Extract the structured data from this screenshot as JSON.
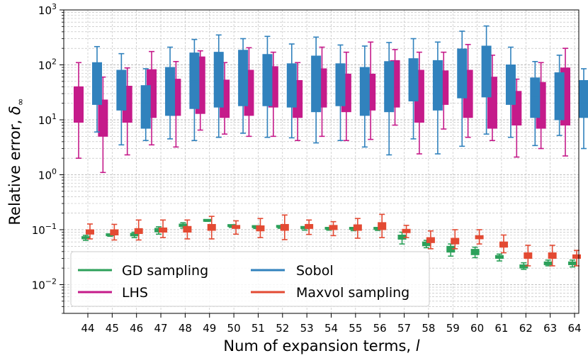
{
  "chart_data": {
    "type": "boxplot",
    "xlabel": "Num of expansion terms, ",
    "xlabel_var": "l",
    "ylabel": "Relative error, ",
    "ylabel_var": "δ",
    "ylabel_sub": "∞",
    "yscale": "log",
    "ylim": [
      0.003,
      1000
    ],
    "y_ticks": [
      {
        "value": 0.01,
        "base": "10",
        "exp": "−2"
      },
      {
        "value": 0.1,
        "base": "10",
        "exp": "−1"
      },
      {
        "value": 1,
        "base": "10",
        "exp": "0"
      },
      {
        "value": 10,
        "base": "10",
        "exp": "1"
      },
      {
        "value": 100,
        "base": "10",
        "exp": "2"
      },
      {
        "value": 1000,
        "base": "10",
        "exp": "3"
      }
    ],
    "grid": true,
    "legend_position": "lower-left",
    "categories": [
      "44",
      "45",
      "46",
      "47",
      "48",
      "49",
      "50",
      "51",
      "52",
      "53",
      "54",
      "55",
      "56",
      "57",
      "58",
      "59",
      "60",
      "61",
      "62",
      "63",
      "64"
    ],
    "series": [
      {
        "name": "GD sampling",
        "color": "#2ca05a",
        "offset": -3,
        "boxes": [
          [
            0.064,
            0.068,
            0.071,
            0.075,
            0.079
          ],
          [
            0.076,
            0.078,
            0.08,
            0.081,
            0.083
          ],
          [
            0.072,
            0.077,
            0.081,
            0.086,
            0.09
          ],
          [
            0.083,
            0.091,
            0.098,
            0.106,
            0.113
          ],
          [
            0.107,
            0.114,
            0.12,
            0.127,
            0.134
          ],
          [
            0.142,
            0.144,
            0.146,
            0.148,
            0.15
          ],
          [
            0.11,
            0.113,
            0.116,
            0.119,
            0.122
          ],
          [
            0.105,
            0.108,
            0.111,
            0.114,
            0.117
          ],
          [
            0.106,
            0.109,
            0.112,
            0.115,
            0.118
          ],
          [
            0.098,
            0.102,
            0.106,
            0.11,
            0.113
          ],
          [
            0.098,
            0.101,
            0.104,
            0.106,
            0.108
          ],
          [
            0.096,
            0.1,
            0.103,
            0.106,
            0.109
          ],
          [
            0.097,
            0.1,
            0.103,
            0.106,
            0.109
          ],
          [
            0.055,
            0.067,
            0.075,
            0.08,
            0.09
          ],
          [
            0.047,
            0.051,
            0.055,
            0.06,
            0.064
          ],
          [
            0.033,
            0.039,
            0.044,
            0.05,
            0.055
          ],
          [
            0.031,
            0.035,
            0.039,
            0.044,
            0.048
          ],
          [
            0.027,
            0.03,
            0.032,
            0.034,
            0.036
          ],
          [
            0.019,
            0.02,
            0.022,
            0.023,
            0.025
          ],
          [
            0.022,
            0.023,
            0.025,
            0.026,
            0.028
          ],
          [
            0.021,
            0.023,
            0.025,
            0.026,
            0.028
          ]
        ]
      },
      {
        "name": "Maxvol sampling",
        "color": "#e34a33",
        "offset": 3,
        "boxes": [
          [
            0.068,
            0.083,
            0.093,
            0.1,
            0.127
          ],
          [
            0.065,
            0.08,
            0.09,
            0.1,
            0.125
          ],
          [
            0.065,
            0.085,
            0.095,
            0.105,
            0.15
          ],
          [
            0.072,
            0.09,
            0.1,
            0.108,
            0.15
          ],
          [
            0.068,
            0.09,
            0.105,
            0.115,
            0.15
          ],
          [
            0.068,
            0.097,
            0.11,
            0.125,
            0.175
          ],
          [
            0.083,
            0.105,
            0.112,
            0.12,
            0.145
          ],
          [
            0.072,
            0.095,
            0.11,
            0.118,
            0.16
          ],
          [
            0.066,
            0.097,
            0.118,
            0.125,
            0.185
          ],
          [
            0.082,
            0.105,
            0.115,
            0.125,
            0.15
          ],
          [
            0.078,
            0.1,
            0.112,
            0.12,
            0.14
          ],
          [
            0.07,
            0.097,
            0.115,
            0.123,
            0.16
          ],
          [
            0.072,
            0.1,
            0.12,
            0.135,
            0.19
          ],
          [
            0.072,
            0.088,
            0.095,
            0.102,
            0.12
          ],
          [
            0.045,
            0.058,
            0.065,
            0.072,
            0.095
          ],
          [
            0.045,
            0.055,
            0.062,
            0.07,
            0.1
          ],
          [
            0.055,
            0.068,
            0.074,
            0.078,
            0.1
          ],
          [
            0.038,
            0.048,
            0.053,
            0.06,
            0.08
          ],
          [
            0.022,
            0.03,
            0.034,
            0.038,
            0.052
          ],
          [
            0.022,
            0.03,
            0.034,
            0.038,
            0.052
          ],
          [
            0.022,
            0.03,
            0.032,
            0.035,
            0.042
          ]
        ]
      },
      {
        "name": "LHS",
        "color": "#c51b8a",
        "offset": -13,
        "boxes": [
          [
            2,
            9,
            20,
            40,
            110
          ],
          [
            1.1,
            5,
            10,
            23,
            60
          ],
          [
            2.3,
            9,
            25,
            41,
            88
          ],
          [
            3.5,
            11,
            25,
            82,
            175
          ],
          [
            3.2,
            12,
            25,
            55,
            115
          ],
          [
            6.5,
            13,
            35,
            140,
            180
          ],
          [
            5.5,
            11,
            25,
            53,
            110
          ],
          [
            5,
            12,
            25,
            80,
            205
          ],
          [
            5,
            17,
            35,
            93,
            170
          ],
          [
            4.2,
            11,
            25,
            52,
            110
          ],
          [
            5,
            17,
            20,
            85,
            210
          ],
          [
            4.2,
            14,
            25,
            68,
            170
          ],
          [
            4.4,
            15,
            30,
            68,
            260
          ],
          [
            8,
            17,
            40,
            120,
            190
          ],
          [
            2.4,
            9,
            25,
            80,
            170
          ],
          [
            6.8,
            19,
            40,
            78,
            170
          ],
          [
            4.8,
            11,
            30,
            80,
            235
          ],
          [
            4.2,
            7,
            15,
            60,
            150
          ],
          [
            2.1,
            8,
            10,
            33,
            55
          ],
          [
            3,
            7,
            20,
            48,
            110
          ],
          [
            2.2,
            8,
            35,
            88,
            200
          ]
        ]
      },
      {
        "name": "Sobol",
        "color": "#3182bd",
        "offset": 13,
        "boxes": [
          [
            6,
            19,
            40,
            110,
            215
          ],
          [
            3.5,
            15,
            35,
            80,
            160
          ],
          [
            4.2,
            7,
            20,
            42,
            85
          ],
          [
            4.5,
            12,
            35,
            90,
            210
          ],
          [
            4.2,
            16,
            50,
            165,
            290
          ],
          [
            4.8,
            17,
            50,
            170,
            350
          ],
          [
            5.7,
            18,
            80,
            185,
            300
          ],
          [
            4.8,
            18,
            55,
            155,
            330
          ],
          [
            4.7,
            17,
            40,
            105,
            240
          ],
          [
            3.8,
            14,
            40,
            145,
            320
          ],
          [
            4.2,
            18,
            35,
            105,
            230
          ],
          [
            3.2,
            12,
            35,
            90,
            220
          ],
          [
            2.3,
            14,
            40,
            115,
            255
          ],
          [
            4.5,
            22,
            60,
            130,
            300
          ],
          [
            2.4,
            15,
            50,
            120,
            260
          ],
          [
            3.3,
            25,
            80,
            195,
            410
          ],
          [
            5.5,
            26,
            75,
            220,
            510
          ],
          [
            4.8,
            19,
            40,
            100,
            210
          ],
          [
            3.4,
            11,
            25,
            58,
            115
          ],
          [
            5.2,
            10,
            25,
            72,
            150
          ],
          [
            3,
            11,
            20,
            52,
            85
          ]
        ]
      }
    ]
  }
}
